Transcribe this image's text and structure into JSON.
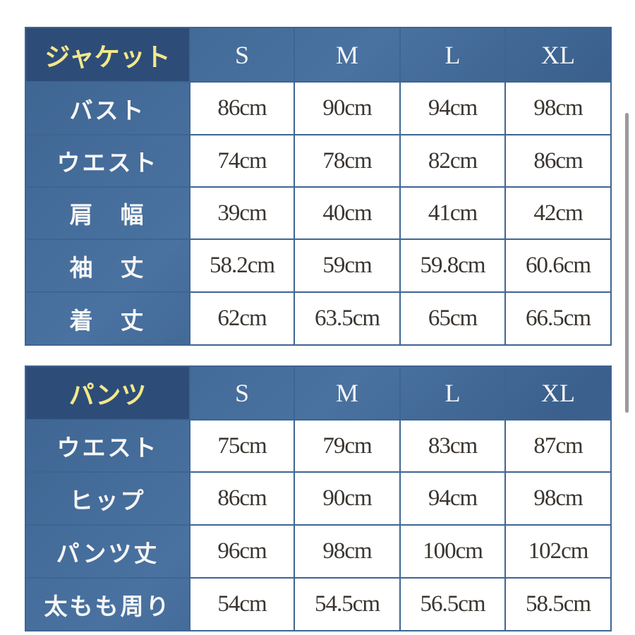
{
  "tables": [
    {
      "header": [
        "ジャケット",
        "S",
        "M",
        "L",
        "XL"
      ],
      "rows": [
        [
          "バスト",
          "86cm",
          "90cm",
          "94cm",
          "98cm"
        ],
        [
          "ウエスト",
          "74cm",
          "78cm",
          "82cm",
          "86cm"
        ],
        [
          "肩　幅",
          "39cm",
          "40cm",
          "41cm",
          "42cm"
        ],
        [
          "袖　丈",
          "58.2cm",
          "59cm",
          "59.8cm",
          "60.6cm"
        ],
        [
          "着　丈",
          "62cm",
          "63.5cm",
          "65cm",
          "66.5cm"
        ]
      ]
    },
    {
      "header": [
        "パンツ",
        "S",
        "M",
        "L",
        "XL"
      ],
      "rows": [
        [
          "ウエスト",
          "75cm",
          "79cm",
          "83cm",
          "87cm"
        ],
        [
          "ヒップ",
          "86cm",
          "90cm",
          "94cm",
          "98cm"
        ],
        [
          "パンツ丈",
          "96cm",
          "98cm",
          "100cm",
          "102cm"
        ],
        [
          "太もも周り",
          "54cm",
          "54.5cm",
          "56.5cm",
          "58.5cm"
        ]
      ]
    }
  ]
}
